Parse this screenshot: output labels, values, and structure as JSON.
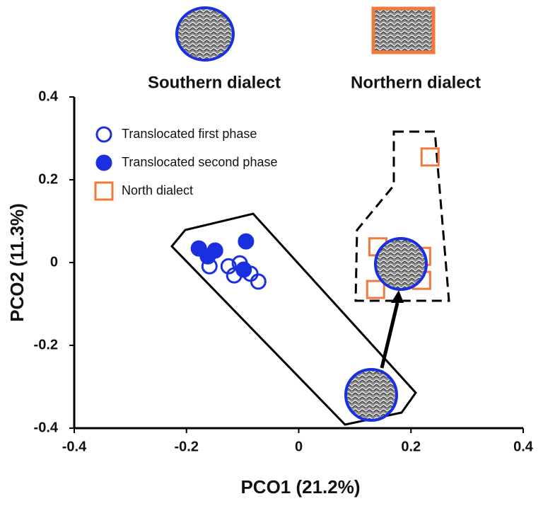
{
  "chart_data": {
    "type": "scatter",
    "annotations": [
      "Southern dialect",
      "Northern dialect"
    ],
    "x_label": "PCO1 (21.2%)",
    "y_label": "PCO2 (11.3%)",
    "xlim": [
      -0.4,
      0.4
    ],
    "xticks": [
      -0.4,
      -0.2,
      0,
      0.2,
      0.4
    ],
    "ylim": [
      -0.4,
      0.4
    ],
    "yticks": [
      -0.4,
      -0.2,
      0,
      0.2,
      0.4
    ],
    "grid": false,
    "legend": "upper-left",
    "series": [
      {
        "name": "Translocated first phase",
        "color": "#1a2fe0",
        "marker": "circle-open",
        "x": [
          -0.159,
          -0.125,
          -0.115,
          -0.105,
          -0.086,
          -0.072
        ],
        "values": [
          -0.009,
          -0.009,
          -0.031,
          -0.002,
          -0.027,
          -0.046
        ]
      },
      {
        "name": "Translocated second phase",
        "color": "#1a2fe0",
        "marker": "circle",
        "x": [
          -0.178,
          -0.149,
          -0.094,
          -0.098,
          -0.162
        ],
        "values": [
          0.034,
          0.029,
          0.051,
          -0.017,
          0.015
        ]
      },
      {
        "name": "North dialect",
        "color": "#f07a3c",
        "marker": "square-open",
        "x": [
          0.234,
          0.141,
          0.219,
          0.219,
          0.137
        ],
        "values": [
          0.255,
          0.038,
          0.015,
          -0.043,
          -0.065
        ]
      }
    ]
  }
}
